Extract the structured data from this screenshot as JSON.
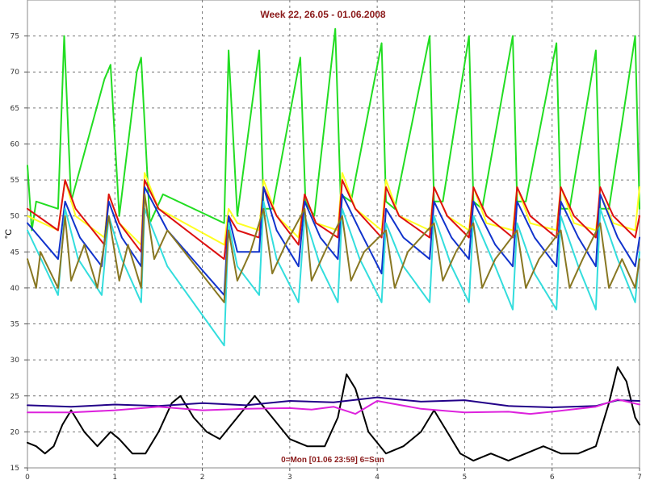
{
  "chart_data": {
    "type": "line",
    "title": "Week 22, 26.05 - 01.06.2008",
    "xlabel": "0=Mon [01.06 23:59] 6=Sun",
    "ylabel": "°C",
    "xlim": [
      0,
      7
    ],
    "ylim": [
      15,
      80
    ],
    "xticks": [
      0,
      1,
      2,
      3,
      4,
      5,
      6,
      7
    ],
    "yticks": [
      15,
      20,
      25,
      30,
      35,
      40,
      45,
      50,
      55,
      60,
      65,
      70,
      75
    ],
    "grid": true,
    "series": [
      {
        "color": "#22dd22",
        "x": [
          0,
          0.05,
          0.1,
          0.35,
          0.42,
          0.5,
          0.88,
          0.95,
          1.05,
          1.25,
          1.3,
          1.4,
          1.55,
          2.25,
          2.3,
          2.4,
          2.65,
          2.7,
          2.8,
          3.12,
          3.18,
          3.28,
          3.52,
          3.58,
          3.7,
          4.05,
          4.1,
          4.2,
          4.6,
          4.65,
          4.75,
          5.05,
          5.1,
          5.2,
          5.55,
          5.6,
          5.7,
          6.05,
          6.1,
          6.2,
          6.5,
          6.55,
          6.65,
          6.95,
          7
        ],
        "y": [
          57,
          48,
          52,
          51,
          75,
          52,
          69,
          71,
          50,
          70,
          72,
          49,
          53,
          49,
          73,
          50,
          73,
          51,
          51,
          72,
          52,
          50,
          76,
          53,
          52,
          74,
          52,
          51,
          75,
          52,
          52,
          75,
          52,
          51,
          75,
          52,
          52,
          74,
          51,
          51,
          73,
          51,
          51,
          75,
          51
        ]
      },
      {
        "color": "#ffff22",
        "x": [
          0,
          0.35,
          0.43,
          0.55,
          0.88,
          0.93,
          1.05,
          1.3,
          1.34,
          1.5,
          2.25,
          2.3,
          2.4,
          2.65,
          2.7,
          2.85,
          3.1,
          3.17,
          3.3,
          3.55,
          3.6,
          3.75,
          4.05,
          4.1,
          4.25,
          4.6,
          4.65,
          4.8,
          5.05,
          5.1,
          5.25,
          5.55,
          5.6,
          5.75,
          6.05,
          6.1,
          6.25,
          6.5,
          6.55,
          6.7,
          6.95,
          7
        ],
        "y": [
          50,
          48,
          55,
          50,
          47,
          53,
          49,
          46,
          56,
          51,
          46,
          51,
          49,
          48,
          55,
          50,
          47,
          53,
          49,
          48,
          56,
          51,
          48,
          55,
          50,
          48,
          54,
          50,
          48,
          54,
          49,
          48,
          54,
          49,
          48,
          54,
          49,
          48,
          53,
          49,
          48,
          54
        ]
      },
      {
        "color": "#dd1111",
        "x": [
          0,
          0.35,
          0.43,
          0.55,
          0.88,
          0.93,
          1.05,
          1.3,
          1.34,
          1.5,
          2.25,
          2.3,
          2.4,
          2.65,
          2.7,
          2.85,
          3.1,
          3.17,
          3.3,
          3.55,
          3.6,
          3.75,
          4.05,
          4.1,
          4.25,
          4.6,
          4.65,
          4.8,
          5.05,
          5.1,
          5.25,
          5.55,
          5.6,
          5.75,
          6.05,
          6.1,
          6.25,
          6.5,
          6.55,
          6.7,
          6.95,
          7
        ],
        "y": [
          51,
          48,
          55,
          51,
          46,
          53,
          49,
          45,
          55,
          51,
          44,
          50,
          48,
          47,
          54,
          50,
          46,
          53,
          49,
          47,
          55,
          51,
          47,
          54,
          50,
          47,
          54,
          50,
          47,
          54,
          50,
          47,
          54,
          50,
          47,
          54,
          50,
          47,
          54,
          50,
          47,
          50
        ]
      },
      {
        "color": "#1133cc",
        "x": [
          0,
          0.35,
          0.43,
          0.6,
          0.85,
          0.93,
          1.08,
          1.3,
          1.34,
          1.6,
          2.25,
          2.3,
          2.4,
          2.65,
          2.7,
          2.85,
          3.1,
          3.17,
          3.35,
          3.55,
          3.6,
          3.8,
          4.05,
          4.1,
          4.3,
          4.6,
          4.65,
          4.85,
          5.05,
          5.1,
          5.35,
          5.55,
          5.6,
          5.8,
          6.05,
          6.1,
          6.3,
          6.5,
          6.55,
          6.75,
          6.95,
          7
        ],
        "y": [
          49,
          44,
          52,
          47,
          43,
          52,
          47,
          43,
          54,
          48,
          39,
          50,
          45,
          45,
          54,
          48,
          43,
          52,
          47,
          44,
          53,
          48,
          42,
          51,
          47,
          44,
          52,
          47,
          44,
          52,
          46,
          43,
          52,
          47,
          43,
          52,
          47,
          43,
          53,
          47,
          43,
          47
        ]
      },
      {
        "color": "#33dddd",
        "x": [
          0,
          0.35,
          0.43,
          0.58,
          0.85,
          0.93,
          1.08,
          1.3,
          1.34,
          1.6,
          2.25,
          2.3,
          2.4,
          2.65,
          2.7,
          2.85,
          3.1,
          3.17,
          3.35,
          3.55,
          3.6,
          3.8,
          4.05,
          4.1,
          4.3,
          4.6,
          4.65,
          4.85,
          5.05,
          5.1,
          5.35,
          5.55,
          5.6,
          5.8,
          6.05,
          6.1,
          6.3,
          6.5,
          6.55,
          6.75,
          6.95,
          7
        ],
        "y": [
          48,
          39,
          51,
          44,
          39,
          50,
          44,
          38,
          51,
          43,
          32,
          49,
          43,
          39,
          52,
          44,
          38,
          50,
          43,
          38,
          51,
          44,
          38,
          49,
          43,
          38,
          50,
          43,
          38,
          50,
          43,
          37,
          49,
          42,
          37,
          50,
          43,
          37,
          51,
          44,
          38,
          45
        ]
      },
      {
        "color": "#887722",
        "x": [
          0,
          0.1,
          0.15,
          0.35,
          0.43,
          0.5,
          0.65,
          0.8,
          0.93,
          1.05,
          1.15,
          1.3,
          1.34,
          1.45,
          1.6,
          2.25,
          2.3,
          2.4,
          2.55,
          2.7,
          2.8,
          2.95,
          3.17,
          3.25,
          3.4,
          3.6,
          3.7,
          3.85,
          4.1,
          4.2,
          4.35,
          4.65,
          4.75,
          4.9,
          5.1,
          5.2,
          5.35,
          5.6,
          5.7,
          5.85,
          6.1,
          6.2,
          6.35,
          6.55,
          6.65,
          6.8,
          6.95,
          7
        ],
        "y": [
          44,
          40,
          45,
          40,
          50,
          41,
          46,
          40,
          50,
          41,
          46,
          40,
          53,
          44,
          48,
          38,
          48,
          41,
          45,
          51,
          42,
          46,
          51,
          41,
          45,
          50,
          41,
          45,
          48,
          40,
          45,
          49,
          41,
          45,
          49,
          40,
          44,
          48,
          40,
          44,
          48,
          40,
          44,
          49,
          40,
          44,
          40,
          44
        ]
      },
      {
        "color": "#000000",
        "x": [
          0,
          0.1,
          0.2,
          0.3,
          0.4,
          0.5,
          0.65,
          0.8,
          0.95,
          1.05,
          1.2,
          1.35,
          1.5,
          1.65,
          1.75,
          1.9,
          2.05,
          2.2,
          2.4,
          2.6,
          2.8,
          3.0,
          3.2,
          3.4,
          3.55,
          3.65,
          3.75,
          3.9,
          4.1,
          4.3,
          4.5,
          4.65,
          4.8,
          4.95,
          5.1,
          5.3,
          5.5,
          5.7,
          5.9,
          6.1,
          6.3,
          6.5,
          6.65,
          6.75,
          6.85,
          6.95,
          7
        ],
        "y": [
          18.5,
          18,
          17,
          18,
          21,
          23,
          20,
          18,
          20,
          19,
          17,
          17,
          20,
          24,
          25,
          22,
          20,
          19,
          22,
          25,
          22,
          19,
          18,
          18,
          22,
          28,
          26,
          20,
          17,
          18,
          20,
          23,
          20,
          17,
          16,
          17,
          16,
          17,
          18,
          17,
          17,
          18,
          24,
          29,
          27,
          22,
          21
        ]
      },
      {
        "color": "#220088",
        "x": [
          0,
          0.5,
          1,
          1.5,
          2,
          2.5,
          3,
          3.5,
          4,
          4.5,
          5,
          5.5,
          6,
          6.5,
          6.75,
          7
        ],
        "y": [
          23.7,
          23.5,
          23.8,
          23.6,
          24,
          23.7,
          24.3,
          24.1,
          24.8,
          24.2,
          24.4,
          23.6,
          23.4,
          23.6,
          24.4,
          24.3
        ]
      },
      {
        "color": "#dd22dd",
        "x": [
          0,
          0.5,
          1,
          1.5,
          2,
          2.5,
          3,
          3.25,
          3.5,
          3.75,
          4,
          4.5,
          5,
          5.5,
          5.75,
          6,
          6.5,
          6.75,
          7
        ],
        "y": [
          22.7,
          22.7,
          23,
          23.5,
          23,
          23.2,
          23.3,
          23.1,
          23.5,
          22.5,
          24.3,
          23.2,
          22.7,
          22.8,
          22.5,
          22.8,
          23.5,
          24.5,
          23.8
        ]
      }
    ]
  }
}
